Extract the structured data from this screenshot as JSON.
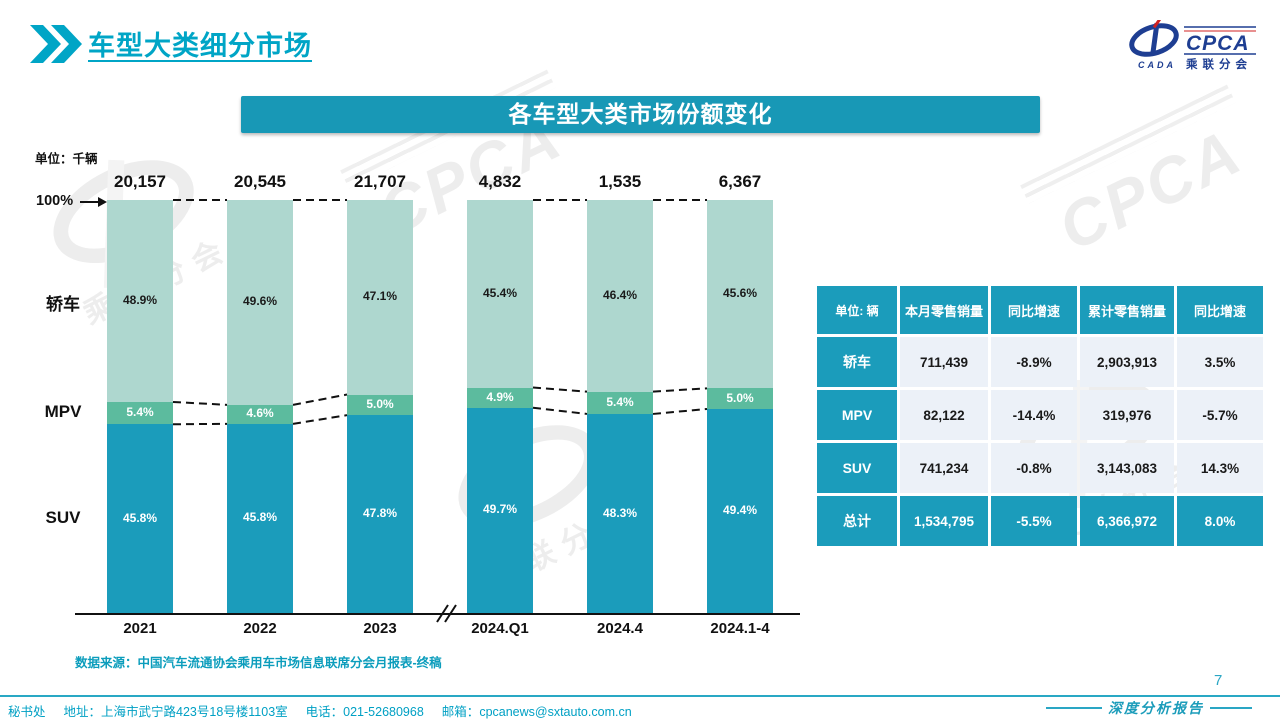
{
  "header": {
    "title": "车型大类细分市场"
  },
  "logo": {
    "cpca": "CPCA",
    "cada": "CADA",
    "subtitle": "乘联分会"
  },
  "banner": {
    "title": "各车型大类市场份额变化"
  },
  "chart_data": {
    "type": "bar",
    "stacked": true,
    "title": "各车型大类市场份额变化",
    "unit_label": "单位：千辆",
    "top_axis_label": "100%",
    "categories": [
      "2021",
      "2022",
      "2023",
      "2024.Q1",
      "2024.4",
      "2024.1-4"
    ],
    "totals_display": [
      "20,157",
      "20,545",
      "21,707",
      "4,832",
      "1,535",
      "6,367"
    ],
    "series": [
      {
        "name": "轿车",
        "color": "#aed7cf",
        "label_color": "#1a1a1a",
        "values": [
          48.9,
          49.6,
          47.1,
          45.4,
          46.4,
          45.6
        ]
      },
      {
        "name": "MPV",
        "color": "#5cbb9e",
        "label_color": "#ffffff",
        "values": [
          5.4,
          4.6,
          5.0,
          4.9,
          5.4,
          5.0
        ]
      },
      {
        "name": "SUV",
        "color": "#1b9cbb",
        "label_color": "#ffffff",
        "values": [
          45.8,
          45.8,
          47.8,
          49.7,
          48.3,
          49.4
        ]
      }
    ],
    "value_suffix": "%",
    "ylim": [
      0,
      100
    ],
    "grid": false,
    "legend_position": "left-of-bars",
    "axis_break_after_index": 2,
    "connected_pairs": [
      [
        0,
        1
      ],
      [
        1,
        2
      ],
      [
        3,
        4
      ],
      [
        4,
        5
      ]
    ]
  },
  "table": {
    "unit_header": "单位: 辆",
    "columns": [
      "本月零售销量",
      "同比增速",
      "累计零售销量",
      "同比增速"
    ],
    "rows": [
      {
        "label": "轿车",
        "cells": [
          "711,439",
          "-8.9%",
          "2,903,913",
          "3.5%"
        ],
        "is_total": false
      },
      {
        "label": "MPV",
        "cells": [
          "82,122",
          "-14.4%",
          "319,976",
          "-5.7%"
        ],
        "is_total": false
      },
      {
        "label": "SUV",
        "cells": [
          "741,234",
          "-0.8%",
          "3,143,083",
          "14.3%"
        ],
        "is_total": false
      },
      {
        "label": "总计",
        "cells": [
          "1,534,795",
          "-5.5%",
          "6,366,972",
          "8.0%"
        ],
        "is_total": true
      }
    ]
  },
  "source_note": "数据来源：中国汽车流通协会乘用车市场信息联席分会月报表-终稿",
  "footer": {
    "secretariat": "秘书处",
    "address": "地址：上海市武宁路423号18号楼1103室",
    "phone": "电话：021-52680968",
    "email_label": "邮箱：",
    "email": "cpcanews@sxtauto.com.cn",
    "page_number": "7",
    "tagline": "深度分析报告"
  },
  "watermark": {
    "cpca": "CPCA",
    "subtitle": "乘联分会"
  },
  "colors": {
    "primary_teal": "#1b9cbb",
    "title_teal": "#00a5c6",
    "banner_teal": "#1898b6",
    "table_cell_bg": "#ecf1f8"
  }
}
